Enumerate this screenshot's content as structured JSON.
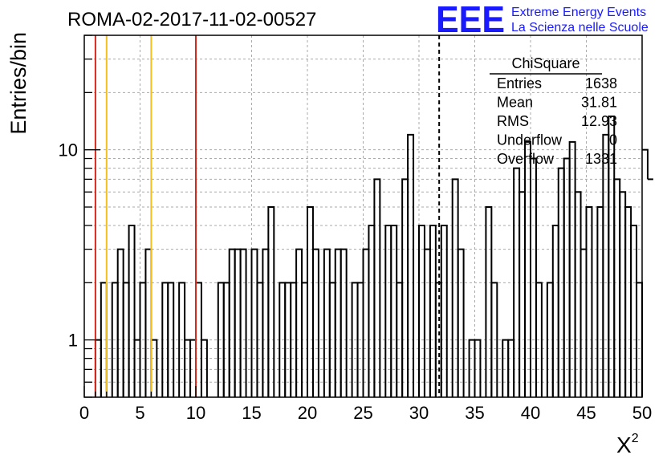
{
  "chart_data": {
    "type": "histogram",
    "title": "ROMA-02-2017-11-02-00527",
    "ylabel": "Entries/bin",
    "xlabel": "X",
    "xlabel_superscript": "2",
    "xlim": [
      0,
      50
    ],
    "ylim": [
      0.5,
      40
    ],
    "yscale": "log",
    "grid": true,
    "bin_width": 0.5,
    "x_ticks": [
      0,
      5,
      10,
      15,
      20,
      25,
      30,
      35,
      40,
      45,
      50
    ],
    "y_ticks": [
      1,
      10
    ],
    "values": [
      0,
      0,
      1,
      2,
      0,
      2,
      3,
      2,
      4,
      1,
      2,
      3,
      1,
      0,
      2,
      2,
      0,
      2,
      1,
      1,
      2,
      1,
      0,
      0,
      2,
      2,
      3,
      3,
      3,
      0,
      3,
      2,
      3,
      5,
      0,
      2,
      2,
      2,
      3,
      2,
      5,
      3,
      0,
      3,
      2,
      3,
      3,
      0,
      2,
      2,
      3,
      4,
      7,
      0,
      4,
      4,
      2,
      7,
      12,
      0,
      4,
      3,
      4,
      2,
      4,
      0,
      7,
      3,
      0,
      1,
      1,
      0,
      5,
      2,
      0,
      1,
      1,
      8,
      6,
      11,
      9,
      2,
      0,
      2,
      4,
      8,
      9,
      11,
      6,
      3,
      5,
      0,
      5,
      12,
      15,
      7,
      6,
      5,
      4,
      2
    ],
    "overflow_bins": [
      10,
      7
    ],
    "vertical_lines": [
      {
        "x": 1,
        "color": "#d42a1e",
        "style": "solid"
      },
      {
        "x": 2,
        "color": "#f2c01f",
        "style": "solid"
      },
      {
        "x": 6,
        "color": "#f2c01f",
        "style": "solid"
      },
      {
        "x": 10,
        "color": "#d42a1e",
        "style": "solid"
      },
      {
        "x": 31.81,
        "color": "#000000",
        "style": "dashed"
      }
    ],
    "stats": {
      "title": "ChiSquare",
      "rows": [
        {
          "label": "Entries",
          "value": "1638"
        },
        {
          "label": "Mean",
          "value": "31.81"
        },
        {
          "label": "RMS",
          "value": "12.93"
        },
        {
          "label": "Underflow",
          "value": "0"
        },
        {
          "label": "Overflow",
          "value": "1331"
        }
      ]
    }
  },
  "logo": {
    "text": "EEE",
    "line1": "Extreme Energy Events",
    "line2": "La Scienza nelle Scuole",
    "color": "#1a1aff"
  }
}
